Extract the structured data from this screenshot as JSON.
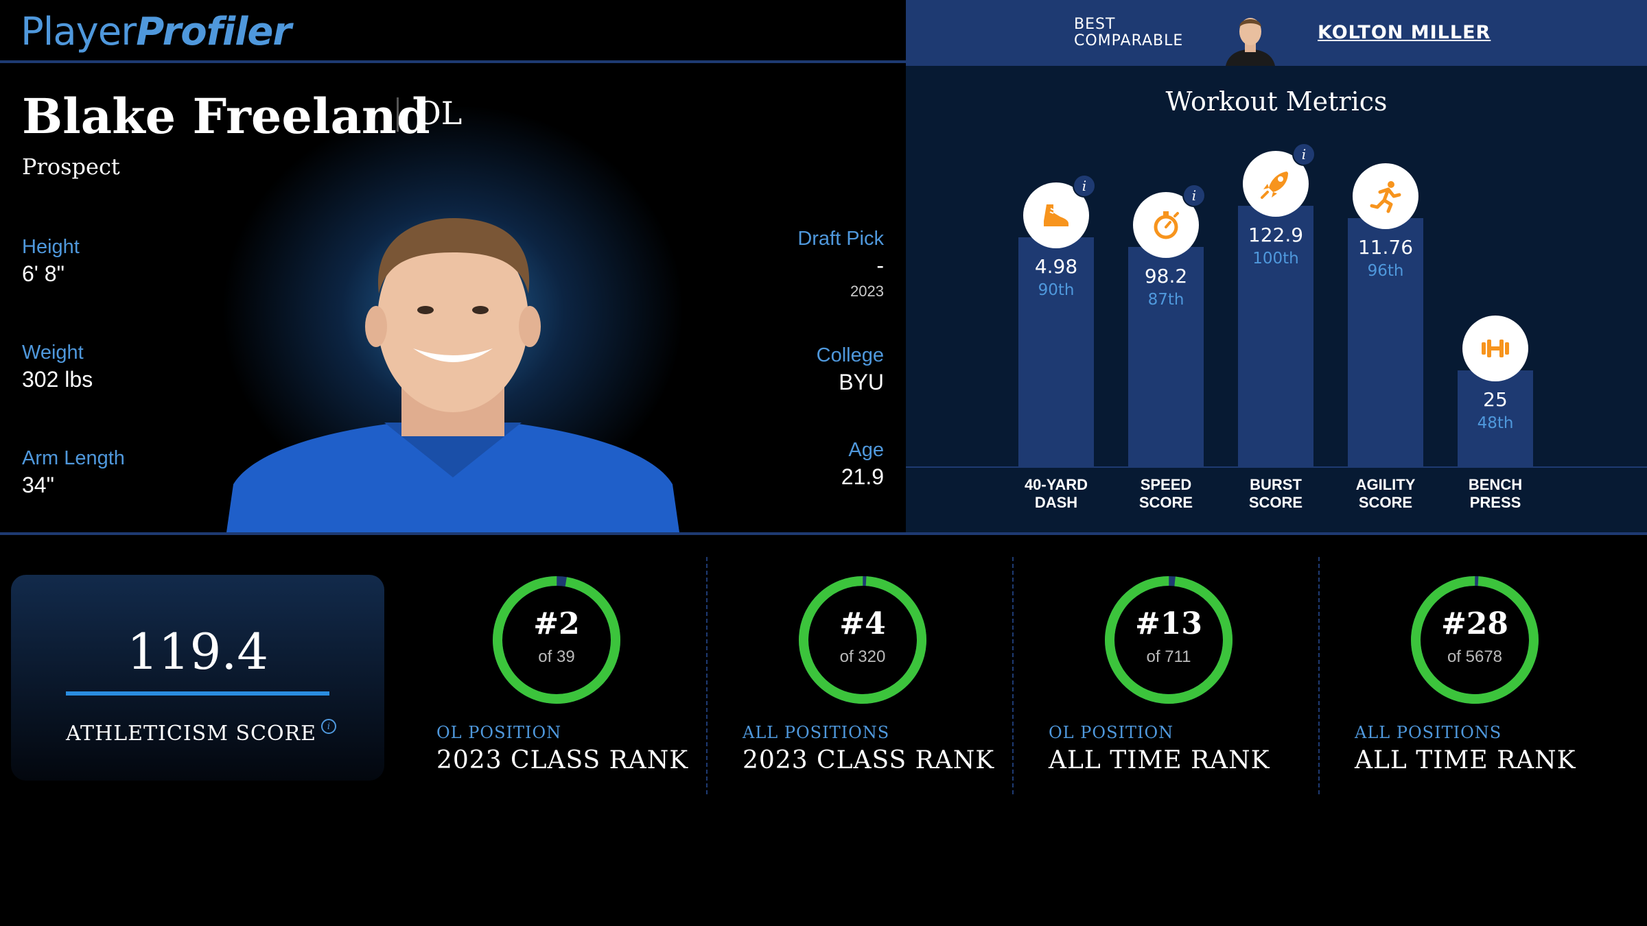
{
  "header": {
    "logo_part1": "Player",
    "logo_part2": "Profiler",
    "comparable_label_1": "BEST",
    "comparable_label_2": "COMPARABLE",
    "comparable_name": "KOLTON MILLER"
  },
  "player": {
    "name": "Blake Freeland",
    "position": "OL",
    "status": "Prospect",
    "left_stats": [
      {
        "label": "Height",
        "value": "6' 8\""
      },
      {
        "label": "Weight",
        "value": "302 lbs"
      },
      {
        "label": "Arm Length",
        "value": "34\""
      }
    ],
    "draft": {
      "label": "Draft Pick",
      "value": "-",
      "year": "2023"
    },
    "college": {
      "label": "College",
      "value": "BYU"
    },
    "age": {
      "label": "Age",
      "value": "21.9"
    }
  },
  "workout": {
    "title": "Workout Metrics",
    "colors": {
      "bar": "#1e3a72",
      "icon": "#f7941d",
      "percentile": "#4f98dc"
    },
    "metrics": [
      {
        "line1": "40-YARD",
        "line2": "DASH",
        "value": "4.98",
        "percentile": "90th",
        "pct": 90,
        "icon": "shoe-icon",
        "info": true
      },
      {
        "line1": "SPEED",
        "line2": "SCORE",
        "value": "98.2",
        "percentile": "87th",
        "pct": 87,
        "icon": "stopwatch-icon",
        "info": true
      },
      {
        "line1": "BURST",
        "line2": "SCORE",
        "value": "122.9",
        "percentile": "100th",
        "pct": 100,
        "icon": "rocket-icon",
        "info": true
      },
      {
        "line1": "AGILITY",
        "line2": "SCORE",
        "value": "11.76",
        "percentile": "96th",
        "pct": 96,
        "icon": "runner-icon",
        "info": false
      },
      {
        "line1": "BENCH",
        "line2": "PRESS",
        "value": "25",
        "percentile": "48th",
        "pct": 48,
        "icon": "dumbbell-icon",
        "info": false
      }
    ]
  },
  "athleticism": {
    "score": "119.4",
    "label": "ATHLETICISM SCORE"
  },
  "ranks": [
    {
      "rank": "#2",
      "of": "of 39",
      "total": 39,
      "small": "OL POSITION",
      "big": "2023 CLASS RANK"
    },
    {
      "rank": "#4",
      "of": "of 320",
      "total": 320,
      "small": "ALL POSITIONS",
      "big": "2023 CLASS RANK"
    },
    {
      "rank": "#13",
      "of": "of 711",
      "total": 711,
      "small": "OL POSITION",
      "big": "ALL TIME RANK"
    },
    {
      "rank": "#28",
      "of": "of 5678",
      "total": 5678,
      "small": "ALL POSITIONS",
      "big": "ALL TIME RANK"
    }
  ]
}
